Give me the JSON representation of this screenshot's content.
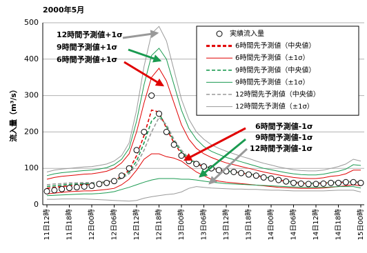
{
  "chart_data": {
    "type": "line",
    "title": "2000年5月",
    "y_label": "流入量（m³/s）",
    "ylim": [
      0,
      500
    ],
    "yticks": [
      0,
      100,
      200,
      300,
      400,
      500
    ],
    "grid": true,
    "legend": "upper right",
    "categories": [
      "11日12時",
      null,
      null,
      "11日18時",
      null,
      null,
      "12日00時",
      null,
      null,
      "12日06時",
      null,
      null,
      "12日12時",
      null,
      null,
      "12日18時",
      null,
      null,
      "13日00時",
      null,
      null,
      "13日06時",
      null,
      null,
      "13日12時",
      null,
      null,
      "13日18時",
      null,
      null,
      "14日00時",
      null,
      null,
      "14日06時",
      null,
      null,
      "14日12時",
      null,
      null,
      "14日18時",
      null,
      null,
      "15日00時"
    ],
    "series": [
      {
        "name": "実績流入量",
        "color": "#000000",
        "marker": "circle",
        "values": [
          37,
          40,
          43,
          46,
          48,
          50,
          52,
          57,
          60,
          65,
          80,
          100,
          150,
          200,
          300,
          250,
          200,
          165,
          135,
          120,
          112,
          105,
          100,
          95,
          92,
          90,
          87,
          83,
          80,
          75,
          72,
          68,
          64,
          60,
          58,
          57,
          57,
          58,
          60,
          60,
          62,
          62,
          60
        ]
      },
      {
        "name": "6時間先予測値（中央値）",
        "color": "#e00000",
        "dash": true,
        "values": [
          45,
          48,
          50,
          52,
          54,
          55,
          56,
          60,
          62,
          66,
          78,
          95,
          135,
          190,
          260,
          255,
          210,
          170,
          140,
          122,
          112,
          105,
          100,
          96,
          92,
          90,
          87,
          84,
          80,
          76,
          72,
          68,
          64,
          61,
          59,
          58,
          58,
          59,
          61,
          61,
          62,
          62,
          61
        ]
      },
      {
        "name": "6時間先予測値（±1σ）",
        "color": "#e00000",
        "values": [
          70,
          75,
          78,
          80,
          82,
          84,
          85,
          88,
          92,
          100,
          115,
          140,
          200,
          280,
          350,
          375,
          340,
          280,
          220,
          180,
          155,
          140,
          130,
          122,
          115,
          110,
          105,
          100,
          95,
          90,
          86,
          82,
          78,
          75,
          73,
          72,
          72,
          74,
          78,
          80,
          85,
          95,
          95
        ],
        "values_lower": [
          30,
          32,
          34,
          36,
          37,
          38,
          38,
          40,
          42,
          45,
          55,
          70,
          95,
          125,
          140,
          140,
          132,
          128,
          120,
          105,
          90,
          80,
          70,
          65,
          62,
          60,
          58,
          56,
          54,
          52,
          50,
          48,
          47,
          46,
          45,
          45,
          45,
          46,
          48,
          50,
          52,
          55,
          52
        ]
      },
      {
        "name": "9時間先予測値（中央値）",
        "color": "#1a9a50",
        "dash": true,
        "values": [
          50,
          52,
          54,
          56,
          57,
          58,
          58,
          60,
          63,
          66,
          75,
          90,
          120,
          170,
          230,
          250,
          215,
          175,
          145,
          125,
          114,
          106,
          101,
          97,
          93,
          90,
          88,
          85,
          81,
          77,
          73,
          69,
          65,
          62,
          60,
          59,
          59,
          60,
          61,
          62,
          63,
          63,
          62
        ]
      },
      {
        "name": "9時間先予測値（±1σ）",
        "color": "#1a9a50",
        "values": [
          80,
          85,
          88,
          90,
          92,
          94,
          95,
          98,
          102,
          110,
          125,
          155,
          230,
          330,
          410,
          430,
          400,
          330,
          260,
          210,
          180,
          160,
          147,
          138,
          130,
          124,
          118,
          112,
          106,
          100,
          96,
          92,
          88,
          85,
          83,
          82,
          82,
          84,
          88,
          92,
          98,
          110,
          108
        ],
        "values_lower": [
          25,
          26,
          27,
          28,
          29,
          30,
          30,
          31,
          33,
          36,
          42,
          48,
          55,
          62,
          68,
          72,
          72,
          72,
          70,
          70,
          68,
          65,
          62,
          60,
          58,
          57,
          56,
          55,
          54,
          53,
          52,
          51,
          50,
          49,
          48,
          48,
          48,
          48,
          49,
          50,
          50,
          50,
          46
        ]
      },
      {
        "name": "12時間先予測値（中央値）",
        "color": "#999999",
        "dash": true,
        "values": [
          55,
          57,
          58,
          60,
          60,
          61,
          61,
          62,
          64,
          66,
          72,
          85,
          110,
          150,
          200,
          240,
          220,
          180,
          150,
          128,
          116,
          108,
          102,
          98,
          94,
          91,
          89,
          86,
          82,
          78,
          74,
          70,
          66,
          63,
          61,
          60,
          60,
          61,
          62,
          63,
          64,
          64,
          63
        ]
      },
      {
        "name": "12時間先予測値（±1σ）",
        "color": "#999999",
        "values": [
          90,
          95,
          98,
          100,
          102,
          104,
          105,
          108,
          112,
          120,
          135,
          170,
          260,
          380,
          470,
          490,
          450,
          370,
          290,
          235,
          200,
          180,
          165,
          155,
          147,
          140,
          133,
          127,
          120,
          114,
          109,
          104,
          100,
          96,
          94,
          93,
          93,
          95,
          100,
          105,
          112,
          125,
          120
        ],
        "values_lower": [
          15,
          15,
          16,
          16,
          16,
          16,
          15,
          14,
          13,
          12,
          11,
          10,
          12,
          18,
          22,
          25,
          28,
          30,
          35,
          45,
          50,
          48,
          46,
          45,
          44,
          43,
          43,
          42,
          42,
          41,
          40,
          40,
          39,
          38,
          38,
          38,
          38,
          38,
          39,
          40,
          40,
          40,
          35
        ]
      }
    ],
    "annotations": [
      {
        "text": "12時間予測値+1σ",
        "color": "#999999"
      },
      {
        "text": "9時間予測値+1σ",
        "color": "#1a9a50"
      },
      {
        "text": "6時間予測値+1σ",
        "color": "#e00000"
      },
      {
        "text": "6時間予測値-1σ",
        "color": "#e00000"
      },
      {
        "text": "9時間予測値-1σ",
        "color": "#1a9a50"
      },
      {
        "text": "12時間予測値-1σ",
        "color": "#999999"
      }
    ]
  }
}
